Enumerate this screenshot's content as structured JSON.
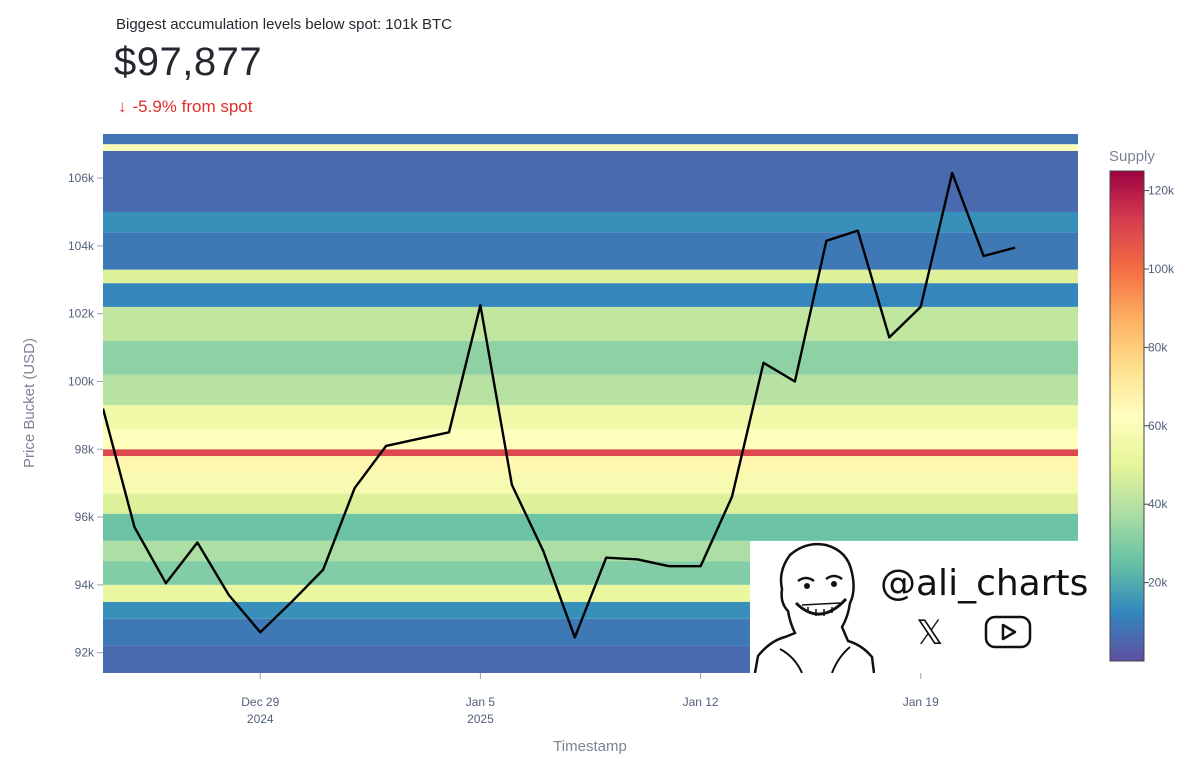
{
  "header": {
    "subtitle": "Biggest accumulation levels below spot: 101k BTC",
    "price": "$97,877",
    "delta_text": "-5.9% from spot",
    "delta_arrow": "↓",
    "delta_color": "#e0302a"
  },
  "badge": {
    "handle": "@ali_charts",
    "x_logo": "𝕏",
    "icons": [
      "x-logo-icon",
      "youtube-icon",
      "meme-face-icon"
    ]
  },
  "chart_data": {
    "type": "heatmap",
    "xlabel": "Timestamp",
    "ylabel": "Price Bucket (USD)",
    "colorbar_title": "Supply",
    "x_range": [
      "2024-12-24",
      "2025-01-24"
    ],
    "y_range": [
      91400,
      107300
    ],
    "y_ticks": [
      {
        "value": 92000,
        "label": "92k"
      },
      {
        "value": 94000,
        "label": "94k"
      },
      {
        "value": 96000,
        "label": "96k"
      },
      {
        "value": 98000,
        "label": "98k"
      },
      {
        "value": 100000,
        "label": "100k"
      },
      {
        "value": 102000,
        "label": "102k"
      },
      {
        "value": 104000,
        "label": "104k"
      },
      {
        "value": 106000,
        "label": "106k"
      }
    ],
    "x_ticks": [
      {
        "date": "2024-12-29",
        "label": "Dec 29",
        "label2": "2024"
      },
      {
        "date": "2025-01-05",
        "label": "Jan 5",
        "label2": "2025"
      },
      {
        "date": "2025-01-12",
        "label": "Jan 12",
        "label2": ""
      },
      {
        "date": "2025-01-19",
        "label": "Jan 19",
        "label2": ""
      }
    ],
    "colorbar_range": [
      0,
      125000
    ],
    "colorbar_ticks": [
      {
        "value": 20000,
        "label": "20k"
      },
      {
        "value": 40000,
        "label": "40k"
      },
      {
        "value": 60000,
        "label": "60k"
      },
      {
        "value": 80000,
        "label": "80k"
      },
      {
        "value": 100000,
        "label": "100k"
      },
      {
        "value": 120000,
        "label": "120k"
      }
    ],
    "colorscale": [
      "#5e4fa2",
      "#3288bd",
      "#66c2a5",
      "#abdda4",
      "#e6f598",
      "#ffffbf",
      "#fee08b",
      "#fdae61",
      "#f46d43",
      "#d53e4f",
      "#9e0142"
    ],
    "price_series": {
      "name": "BTC price",
      "color": "#000000",
      "points": [
        {
          "date": "2024-12-24",
          "price": 99200
        },
        {
          "date": "2024-12-25",
          "price": 95700
        },
        {
          "date": "2024-12-26",
          "price": 94050
        },
        {
          "date": "2024-12-27",
          "price": 95250
        },
        {
          "date": "2024-12-28",
          "price": 93700
        },
        {
          "date": "2024-12-29",
          "price": 92600
        },
        {
          "date": "2024-12-30",
          "price": 93500
        },
        {
          "date": "2024-12-31",
          "price": 94450
        },
        {
          "date": "2025-01-01",
          "price": 96850
        },
        {
          "date": "2025-01-02",
          "price": 98100
        },
        {
          "date": "2025-01-03",
          "price": 98300
        },
        {
          "date": "2025-01-04",
          "price": 98500
        },
        {
          "date": "2025-01-05",
          "price": 102250
        },
        {
          "date": "2025-01-06",
          "price": 96950
        },
        {
          "date": "2025-01-07",
          "price": 95000
        },
        {
          "date": "2025-01-08",
          "price": 92450
        },
        {
          "date": "2025-01-09",
          "price": 94800
        },
        {
          "date": "2025-01-10",
          "price": 94750
        },
        {
          "date": "2025-01-11",
          "price": 94550
        },
        {
          "date": "2025-01-12",
          "price": 94550
        },
        {
          "date": "2025-01-13",
          "price": 96600
        },
        {
          "date": "2025-01-14",
          "price": 100550
        },
        {
          "date": "2025-01-15",
          "price": 100000
        },
        {
          "date": "2025-01-16",
          "price": 104150
        },
        {
          "date": "2025-01-17",
          "price": 104450
        },
        {
          "date": "2025-01-18",
          "price": 101300
        },
        {
          "date": "2025-01-19",
          "price": 102200
        },
        {
          "date": "2025-01-20",
          "price": 106150
        },
        {
          "date": "2025-01-21",
          "price": 103700
        },
        {
          "date": "2025-01-22",
          "price": 103950
        }
      ]
    },
    "bands": [
      {
        "from": 91400,
        "to": 92200,
        "supply": 6000
      },
      {
        "from": 92200,
        "to": 93000,
        "supply": 9000
      },
      {
        "from": 93000,
        "to": 93500,
        "supply": 14000
      },
      {
        "from": 93500,
        "to": 94000,
        "supply": 52000
      },
      {
        "from": 94000,
        "to": 94700,
        "supply": 30000
      },
      {
        "from": 94700,
        "to": 95300,
        "supply": 38000
      },
      {
        "from": 95300,
        "to": 96100,
        "supply": 26000
      },
      {
        "from": 96100,
        "to": 96700,
        "supply": 48000
      },
      {
        "from": 96700,
        "to": 97300,
        "supply": 58000
      },
      {
        "from": 97300,
        "to": 97800,
        "supply": 66000
      },
      {
        "from": 97800,
        "to": 98000,
        "supply": 110000
      },
      {
        "from": 98000,
        "to": 98600,
        "supply": 62000
      },
      {
        "from": 98600,
        "to": 99300,
        "supply": 55000
      },
      {
        "from": 99300,
        "to": 100200,
        "supply": 40000
      },
      {
        "from": 100200,
        "to": 101200,
        "supply": 32000
      },
      {
        "from": 101200,
        "to": 102200,
        "supply": 42000
      },
      {
        "from": 102200,
        "to": 102900,
        "supply": 12000
      },
      {
        "from": 102900,
        "to": 103300,
        "supply": 48000
      },
      {
        "from": 103300,
        "to": 104400,
        "supply": 9000
      },
      {
        "from": 104400,
        "to": 105000,
        "supply": 14000
      },
      {
        "from": 105000,
        "to": 106800,
        "supply": 6000
      },
      {
        "from": 106800,
        "to": 107000,
        "supply": 60000
      },
      {
        "from": 107000,
        "to": 107300,
        "supply": 8000
      }
    ]
  }
}
